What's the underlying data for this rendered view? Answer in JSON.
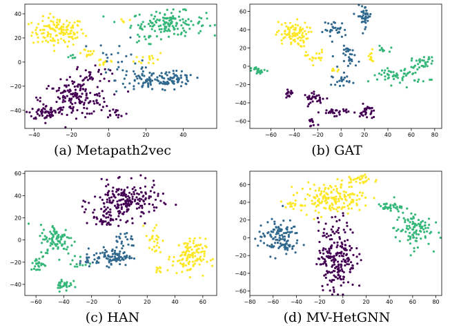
{
  "colors": {
    "class_0": "#440154",
    "class_1": "#31688e",
    "class_2": "#35b779",
    "class_3": "#fde725"
  },
  "chart_data": [
    {
      "type": "scatter",
      "caption": "(a)  Metapath2vec",
      "xlim": [
        -45,
        58
      ],
      "ylim": [
        -55,
        48
      ],
      "xticks": [
        -40,
        -20,
        0,
        20,
        40
      ],
      "yticks": [
        -40,
        -20,
        0,
        20,
        40
      ],
      "series": [
        {
          "class": 3,
          "clusters": [
            {
              "cx": -27,
              "cy": 25,
              "sx": 7,
              "sy": 6,
              "n": 130
            },
            {
              "cx": -12,
              "cy": 8,
              "sx": 3,
              "sy": 2,
              "n": 12
            },
            {
              "cx": -2,
              "cy": 0,
              "sx": 3,
              "sy": 2,
              "n": 12
            },
            {
              "cx": 22,
              "cy": 3,
              "sx": 4,
              "sy": 3,
              "n": 14
            },
            {
              "cx": 8,
              "cy": 35,
              "sx": 2,
              "sy": 2,
              "n": 5
            }
          ]
        },
        {
          "class": 2,
          "clusters": [
            {
              "cx": 32,
              "cy": 32,
              "sx": 10,
              "sy": 5,
              "n": 140
            },
            {
              "cx": 18,
              "cy": 20,
              "sx": 2,
              "sy": 2,
              "n": 8
            },
            {
              "cx": -20,
              "cy": 2,
              "sx": 3,
              "sy": 2,
              "n": 6
            }
          ]
        },
        {
          "class": 1,
          "clusters": [
            {
              "cx": 22,
              "cy": -15,
              "sx": 9,
              "sy": 5,
              "n": 90
            },
            {
              "cx": 38,
              "cy": -15,
              "sx": 4,
              "sy": 3,
              "n": 40
            },
            {
              "cx": 5,
              "cy": 5,
              "sx": 6,
              "sy": 8,
              "n": 20
            }
          ]
        },
        {
          "class": 0,
          "clusters": [
            {
              "cx": -18,
              "cy": -30,
              "sx": 9,
              "sy": 7,
              "n": 150
            },
            {
              "cx": -33,
              "cy": -42,
              "sx": 5,
              "sy": 3,
              "n": 60
            },
            {
              "cx": -10,
              "cy": -10,
              "sx": 5,
              "sy": 4,
              "n": 30
            },
            {
              "cx": 4,
              "cy": -42,
              "sx": 3,
              "sy": 2,
              "n": 15
            }
          ]
        }
      ]
    },
    {
      "type": "scatter",
      "caption": "(b)  GAT",
      "xlim": [
        -78,
        86
      ],
      "ylim": [
        -68,
        68
      ],
      "xticks": [
        -60,
        -40,
        -20,
        0,
        20,
        40,
        60,
        80
      ],
      "yticks": [
        -60,
        -40,
        -20,
        0,
        20,
        40,
        60
      ],
      "series": [
        {
          "class": 3,
          "clusters": [
            {
              "cx": -42,
              "cy": 35,
              "sx": 7,
              "sy": 7,
              "n": 90
            },
            {
              "cx": -22,
              "cy": 10,
              "sx": 4,
              "sy": 4,
              "n": 20
            },
            {
              "cx": 25,
              "cy": 10,
              "sx": 2,
              "sy": 4,
              "n": 12
            },
            {
              "cx": -5,
              "cy": -5,
              "sx": 2,
              "sy": 2,
              "n": 6
            }
          ]
        },
        {
          "class": 2,
          "clusters": [
            {
              "cx": -70,
              "cy": -5,
              "sx": 4,
              "sy": 2,
              "n": 20
            },
            {
              "cx": 50,
              "cy": -10,
              "sx": 12,
              "sy": 5,
              "n": 60
            },
            {
              "cx": 70,
              "cy": 5,
              "sx": 5,
              "sy": 3,
              "n": 30
            },
            {
              "cx": 35,
              "cy": 18,
              "sx": 3,
              "sy": 2,
              "n": 10
            }
          ]
        },
        {
          "class": 1,
          "clusters": [
            {
              "cx": 20,
              "cy": 55,
              "sx": 3,
              "sy": 6,
              "n": 40
            },
            {
              "cx": -5,
              "cy": 40,
              "sx": 5,
              "sy": 5,
              "n": 30
            },
            {
              "cx": 8,
              "cy": 10,
              "sx": 4,
              "sy": 6,
              "n": 30
            },
            {
              "cx": 0,
              "cy": -15,
              "sx": 4,
              "sy": 3,
              "n": 20
            }
          ]
        },
        {
          "class": 0,
          "clusters": [
            {
              "cx": -45,
              "cy": -30,
              "sx": 2,
              "sy": 2,
              "n": 15
            },
            {
              "cx": -22,
              "cy": -35,
              "sx": 5,
              "sy": 3,
              "n": 30
            },
            {
              "cx": -5,
              "cy": -50,
              "sx": 6,
              "sy": 2,
              "n": 30
            },
            {
              "cx": 22,
              "cy": -50,
              "sx": 3,
              "sy": 4,
              "n": 30
            },
            {
              "cx": -25,
              "cy": -62,
              "sx": 2,
              "sy": 3,
              "n": 10
            }
          ]
        }
      ]
    },
    {
      "type": "scatter",
      "caption": "(c)  HAN",
      "xlim": [
        -68,
        70
      ],
      "ylim": [
        -50,
        62
      ],
      "xticks": [
        -60,
        -40,
        -20,
        0,
        20,
        40,
        60
      ],
      "yticks": [
        -40,
        -20,
        0,
        20,
        40,
        60
      ],
      "series": [
        {
          "class": 0,
          "clusters": [
            {
              "cx": 5,
              "cy": 35,
              "sx": 12,
              "sy": 8,
              "n": 200
            },
            {
              "cx": -10,
              "cy": 20,
              "sx": 5,
              "sy": 4,
              "n": 40
            }
          ]
        },
        {
          "class": 3,
          "clusters": [
            {
              "cx": 50,
              "cy": -15,
              "sx": 6,
              "sy": 8,
              "n": 110
            },
            {
              "cx": 25,
              "cy": 0,
              "sx": 3,
              "sy": 8,
              "n": 25
            },
            {
              "cx": 28,
              "cy": -28,
              "sx": 2,
              "sy": 2,
              "n": 8
            }
          ]
        },
        {
          "class": 1,
          "clusters": [
            {
              "cx": -5,
              "cy": -15,
              "sx": 7,
              "sy": 4,
              "n": 90
            },
            {
              "cx": 5,
              "cy": 0,
              "sx": 4,
              "sy": 5,
              "n": 20
            },
            {
              "cx": -25,
              "cy": -18,
              "sx": 3,
              "sy": 3,
              "n": 10
            }
          ]
        },
        {
          "class": 2,
          "clusters": [
            {
              "cx": -45,
              "cy": 0,
              "sx": 6,
              "sy": 7,
              "n": 90
            },
            {
              "cx": -58,
              "cy": -22,
              "sx": 3,
              "sy": 3,
              "n": 25
            },
            {
              "cx": -40,
              "cy": -40,
              "sx": 3,
              "sy": 3,
              "n": 30
            },
            {
              "cx": -30,
              "cy": -22,
              "sx": 4,
              "sy": 3,
              "n": 10
            }
          ]
        }
      ]
    },
    {
      "type": "scatter",
      "caption": "(d)  MV-HetGNN",
      "xlim": [
        -80,
        85
      ],
      "ylim": [
        -65,
        75
      ],
      "xticks": [
        -80,
        -60,
        -40,
        -20,
        0,
        20,
        40,
        60,
        80
      ],
      "yticks": [
        -60,
        -40,
        -20,
        0,
        20,
        40,
        60
      ],
      "series": [
        {
          "class": 3,
          "clusters": [
            {
              "cx": -10,
              "cy": 45,
              "sx": 14,
              "sy": 8,
              "n": 160
            },
            {
              "cx": 15,
              "cy": 65,
              "sx": 8,
              "sy": 3,
              "n": 30
            },
            {
              "cx": -45,
              "cy": 38,
              "sx": 5,
              "sy": 3,
              "n": 15
            }
          ]
        },
        {
          "class": 2,
          "clusters": [
            {
              "cx": 40,
              "cy": 35,
              "sx": 5,
              "sy": 2,
              "n": 30
            },
            {
              "cx": 60,
              "cy": 10,
              "sx": 8,
              "sy": 10,
              "n": 100
            }
          ]
        },
        {
          "class": 1,
          "clusters": [
            {
              "cx": -55,
              "cy": 0,
              "sx": 9,
              "sy": 10,
              "n": 120
            }
          ]
        },
        {
          "class": 0,
          "clusters": [
            {
              "cx": -5,
              "cy": -20,
              "sx": 8,
              "sy": 20,
              "n": 220
            }
          ]
        }
      ]
    }
  ]
}
